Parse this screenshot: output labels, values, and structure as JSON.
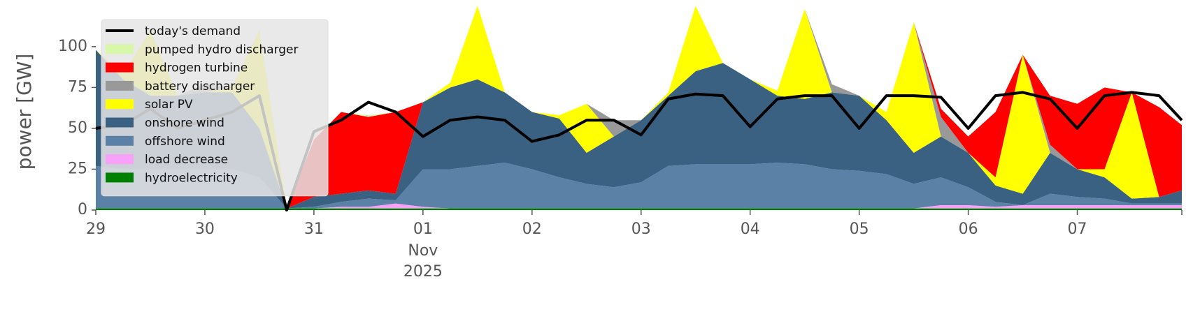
{
  "chart_data": {
    "type": "stacked_area",
    "ylabel": "power [GW]",
    "x": [
      "2025-10-29T00:00",
      "2025-10-29T06:00",
      "2025-10-29T12:00",
      "2025-10-29T18:00",
      "2025-10-30T00:00",
      "2025-10-30T06:00",
      "2025-10-30T12:00",
      "2025-10-30T18:00",
      "2025-10-31T00:00",
      "2025-10-31T06:00",
      "2025-10-31T12:00",
      "2025-10-31T18:00",
      "2025-11-01T00:00",
      "2025-11-01T06:00",
      "2025-11-01T12:00",
      "2025-11-01T18:00",
      "2025-11-02T00:00",
      "2025-11-02T06:00",
      "2025-11-02T12:00",
      "2025-11-02T18:00",
      "2025-11-03T00:00",
      "2025-11-03T06:00",
      "2025-11-03T12:00",
      "2025-11-03T18:00",
      "2025-11-04T00:00",
      "2025-11-04T06:00",
      "2025-11-04T12:00",
      "2025-11-04T18:00",
      "2025-11-05T00:00",
      "2025-11-05T06:00",
      "2025-11-05T12:00",
      "2025-11-05T18:00",
      "2025-11-06T00:00",
      "2025-11-06T06:00",
      "2025-11-06T12:00",
      "2025-11-06T18:00",
      "2025-11-07T00:00",
      "2025-11-07T06:00",
      "2025-11-07T12:00",
      "2025-11-07T18:00",
      "2025-11-07T23:00"
    ],
    "xlim": [
      "2025-10-29T00:00",
      "2025-11-07T23:00"
    ],
    "xticks": [
      {
        "value": "2025-10-29T00:00",
        "label": "29"
      },
      {
        "value": "2025-10-30T00:00",
        "label": "30"
      },
      {
        "value": "2025-10-31T00:00",
        "label": "31"
      },
      {
        "value": "2025-11-01T00:00",
        "label": "01"
      },
      {
        "value": "2025-11-02T00:00",
        "label": "02"
      },
      {
        "value": "2025-11-03T00:00",
        "label": "03"
      },
      {
        "value": "2025-11-04T00:00",
        "label": "04"
      },
      {
        "value": "2025-11-05T00:00",
        "label": "05"
      },
      {
        "value": "2025-11-06T00:00",
        "label": "06"
      },
      {
        "value": "2025-11-07T00:00",
        "label": "07"
      }
    ],
    "x_month_label": "Nov",
    "x_year_label": "2025",
    "ylim": [
      0,
      120
    ],
    "yticks": [
      0,
      25,
      50,
      75,
      100
    ],
    "grid": false,
    "legend": "upper left",
    "series": [
      {
        "name": "today's demand",
        "kind": "line",
        "color": "#000000",
        "values": [
          50,
          52,
          62,
          50,
          55,
          60,
          70,
          0,
          48,
          55,
          66,
          60,
          45,
          55,
          57,
          55,
          42,
          46,
          55,
          55,
          46,
          68,
          71,
          70,
          51,
          68,
          70,
          70,
          50,
          70,
          70,
          69,
          50,
          70,
          72,
          68,
          50,
          70,
          72,
          70,
          55
        ]
      },
      {
        "name": "pumped hydro discharger",
        "kind": "area",
        "color": "#d8f7a8",
        "values": [
          0,
          0,
          0,
          0,
          0,
          0,
          0,
          0,
          0,
          0,
          1,
          0,
          0,
          0,
          0,
          0,
          0,
          0,
          0,
          0,
          0,
          0,
          0,
          0,
          0,
          0,
          0,
          0,
          0,
          0,
          0,
          0,
          0,
          0,
          0,
          0,
          0,
          0,
          0,
          0,
          0
        ]
      },
      {
        "name": "hydrogen turbine",
        "kind": "area",
        "color": "#ff0000",
        "values": [
          0,
          0,
          0,
          0,
          0,
          0,
          0,
          0,
          35,
          50,
          45,
          50,
          0,
          0,
          0,
          0,
          0,
          0,
          0,
          0,
          0,
          0,
          0,
          0,
          0,
          0,
          0,
          0,
          0,
          0,
          0,
          5,
          10,
          40,
          0,
          30,
          40,
          50,
          0,
          55,
          40
        ]
      },
      {
        "name": "battery discharger",
        "kind": "area",
        "color": "#999999",
        "values": [
          0,
          0,
          0,
          0,
          5,
          0,
          0,
          0,
          0,
          0,
          0,
          0,
          0,
          0,
          0,
          0,
          0,
          0,
          0,
          10,
          0,
          0,
          0,
          0,
          0,
          0,
          0,
          5,
          0,
          0,
          0,
          12,
          0,
          0,
          0,
          5,
          0,
          0,
          0,
          0,
          0
        ]
      },
      {
        "name": "solar PV",
        "kind": "area",
        "color": "#ffff00",
        "values": [
          0,
          3,
          40,
          0,
          0,
          3,
          60,
          0,
          0,
          0,
          0,
          0,
          0,
          3,
          45,
          0,
          0,
          2,
          30,
          0,
          0,
          2,
          40,
          0,
          0,
          3,
          55,
          0,
          0,
          5,
          80,
          0,
          0,
          5,
          85,
          0,
          0,
          5,
          65,
          0,
          0
        ]
      },
      {
        "name": "onshore wind",
        "kind": "area",
        "color": "#3b6182",
        "values": [
          71,
          55,
          45,
          45,
          47,
          47,
          30,
          0,
          6,
          5,
          5,
          4,
          41,
          50,
          53,
          43,
          35,
          36,
          19,
          31,
          38,
          43,
          57,
          62,
          52,
          41,
          40,
          47,
          46,
          33,
          19,
          25,
          21,
          10,
          7,
          25,
          17,
          13,
          3,
          4,
          8
        ]
      },
      {
        "name": "offshore wind",
        "kind": "area",
        "color": "#5b82a6",
        "values": [
          26,
          24,
          24,
          24,
          24,
          24,
          19,
          0,
          1,
          3,
          5,
          2,
          23,
          24,
          26,
          28,
          24,
          19,
          15,
          13,
          16,
          26,
          27,
          27,
          27,
          28,
          27,
          24,
          23,
          21,
          15,
          17,
          11,
          3,
          0,
          7,
          5,
          4,
          1,
          1,
          1
        ]
      },
      {
        "name": "load decrease",
        "kind": "area",
        "color": "#f9a0f9",
        "values": [
          0,
          0,
          0,
          0,
          0,
          0,
          0,
          0,
          0,
          1,
          1,
          3,
          1,
          0,
          0,
          0,
          0,
          0,
          0,
          0,
          0,
          0,
          0,
          0,
          0,
          0,
          0,
          0,
          0,
          0,
          0,
          2,
          2,
          1,
          2,
          2,
          2,
          2,
          2,
          2,
          2
        ]
      },
      {
        "name": "hydroelectricity",
        "kind": "area",
        "color": "#008000",
        "values": [
          1,
          1,
          1,
          1,
          1,
          1,
          1,
          1,
          1,
          1,
          1,
          1,
          1,
          1,
          1,
          1,
          1,
          1,
          1,
          1,
          1,
          1,
          1,
          1,
          1,
          1,
          1,
          1,
          1,
          1,
          1,
          1,
          1,
          1,
          1,
          1,
          1,
          1,
          1,
          1,
          1
        ]
      }
    ]
  }
}
